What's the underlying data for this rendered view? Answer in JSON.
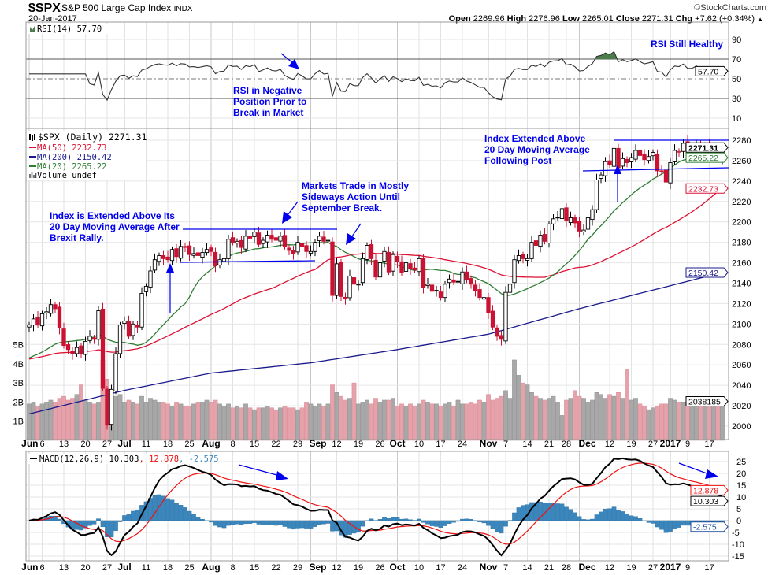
{
  "header": {
    "symbol": "$SPX",
    "name": "S&P 500 Large Cap Index",
    "exchange": "INDX",
    "date": "20-Jan-2017",
    "watermark": "©StockCharts.com",
    "open_label": "Open",
    "open": "2269.96",
    "high_label": "High",
    "high": "2276.96",
    "low_label": "Low",
    "low": "2265.01",
    "close_label": "Close",
    "close": "2271.31",
    "chg_label": "Chg",
    "chg": "+7.62 (+0.34%)",
    "chg_arrow": "▲"
  },
  "legends": {
    "rsi": "RSI(14) 57.70",
    "price": "$SPX (Daily) 2271.31",
    "ma50": "MA(50) 2232.73",
    "ma200": "MA(200) 2150.42",
    "ma20": "MA(20) 2265.22",
    "volume": "Volume undef",
    "macd": "MACD(12,26,9) 10.303",
    "macd_signal": ", 12.878",
    "macd_hist": ", -2.575"
  },
  "tags": {
    "rsi": "57.70",
    "close": "2271.31",
    "ma20": "2265.22",
    "ma50": "2232.73",
    "ma200": "2150.42",
    "volume": "2038185",
    "macd": "10.303",
    "signal": "12.878",
    "hist": "-2.575"
  },
  "annotations": {
    "rsi_healthy": "RSI Still Healthy",
    "rsi_negative": [
      "RSI in Negative",
      "Position Prior to",
      "Break in Market"
    ],
    "extended_dec": [
      "Index Extended Above",
      "20 Day Moving Average",
      "Following Post"
    ],
    "sideways": [
      "Markets Trade in Mostly",
      "Sideways Action Until",
      "September Break."
    ],
    "brexit": [
      "Index is Extended Above Its",
      "20 Day Moving Average After",
      "Brexit Rally."
    ]
  },
  "colors": {
    "ma50": "#dd1133",
    "ma200": "#1a1a8c",
    "ma20": "#2e7d32",
    "up_candle": "#000000",
    "down_candle": "#cc1133",
    "vol_up": "#a8a8a8",
    "vol_down": "#e6a2ab",
    "macd": "#000000",
    "signal": "#ee1111",
    "hist": "#3b86bd",
    "annotation": "#0000ee",
    "rsi_fill": "#4b7d4b"
  },
  "chart_data": {
    "type": "candlestick",
    "title": "$SPX S&P 500 Large Cap Index (Daily)",
    "range": [
      "2016-06-01",
      "2017-01-20"
    ],
    "closes": [
      2099,
      2105,
      2099,
      2110,
      2112,
      2119,
      2115,
      2096,
      2079,
      2075,
      2071,
      2077,
      2071,
      2083,
      2088,
      2085,
      2113,
      2037,
      2001,
      2036,
      2071,
      2099,
      2103,
      2088,
      2100,
      2097,
      2130,
      2137,
      2152,
      2163,
      2167,
      2164,
      2163,
      2173,
      2166,
      2176,
      2175,
      2168,
      2169,
      2167,
      2170,
      2173,
      2171,
      2157,
      2163,
      2164,
      2183,
      2180,
      2181,
      2175,
      2186,
      2184,
      2190,
      2178,
      2182,
      2187,
      2183,
      2182,
      2186,
      2176,
      2172,
      2169,
      2180,
      2176,
      2171,
      2171,
      2180,
      2186,
      2181,
      2182,
      2128,
      2159,
      2127,
      2125,
      2147,
      2139,
      2139,
      2164,
      2177,
      2164,
      2146,
      2160,
      2171,
      2151,
      2168,
      2161,
      2150,
      2160,
      2154,
      2153,
      2164,
      2136,
      2139,
      2132,
      2133,
      2126,
      2139,
      2144,
      2141,
      2141,
      2151,
      2143,
      2139,
      2133,
      2126,
      2126,
      2111,
      2097,
      2088,
      2085,
      2131,
      2139,
      2163,
      2167,
      2164,
      2164,
      2180,
      2177,
      2187,
      2181,
      2198,
      2203,
      2204,
      2213,
      2201,
      2204,
      2199,
      2191,
      2192,
      2204,
      2212,
      2241,
      2246,
      2259,
      2256,
      2272,
      2253,
      2262,
      2258,
      2263,
      2270,
      2265,
      2261,
      2264,
      2268,
      2250,
      2249,
      2239,
      2258,
      2270,
      2269,
      2277,
      2269,
      2269,
      2276,
      2271,
      2275,
      2268,
      2272,
      2264,
      2271.31
    ],
    "volume_billions": [
      1.9,
      2.0,
      1.8,
      1.9,
      2.0,
      2.1,
      2.0,
      2.2,
      2.3,
      2.1,
      2.2,
      2.4,
      2.9,
      2.1,
      2.0,
      1.9,
      2.0,
      4.2,
      3.2,
      2.6,
      2.3,
      2.4,
      2.0,
      2.1,
      2.0,
      1.9,
      2.3,
      2.0,
      2.2,
      2.1,
      2.0,
      2.0,
      1.9,
      1.8,
      2.0,
      1.9,
      1.8,
      1.8,
      1.9,
      2.0,
      2.0,
      2.1,
      2.0,
      2.1,
      1.9,
      1.8,
      1.9,
      1.7,
      1.8,
      1.7,
      1.9,
      1.7,
      1.6,
      1.7,
      1.7,
      1.8,
      1.7,
      1.6,
      1.7,
      1.8,
      1.7,
      1.7,
      1.6,
      1.7,
      2.0,
      1.9,
      1.8,
      1.9,
      1.8,
      1.9,
      2.9,
      2.5,
      2.3,
      2.1,
      2.2,
      3.0,
      1.9,
      2.0,
      2.1,
      1.9,
      2.2,
      2.0,
      2.1,
      2.1,
      2.2,
      1.8,
      1.9,
      1.8,
      1.9,
      1.8,
      1.9,
      2.1,
      2.0,
      1.9,
      1.9,
      1.8,
      1.9,
      2.0,
      1.8,
      2.1,
      1.9,
      1.9,
      2.0,
      1.9,
      2.1,
      2.0,
      2.4,
      2.1,
      2.2,
      2.3,
      2.6,
      2.2,
      4.2,
      3.4,
      3.0,
      2.9,
      2.5,
      2.3,
      2.2,
      2.1,
      2.2,
      2.3,
      2.0,
      1.3,
      2.1,
      2.2,
      2.6,
      2.3,
      2.2,
      2.0,
      2.1,
      2.5,
      2.4,
      2.2,
      2.4,
      2.3,
      2.5,
      2.2,
      3.7,
      2.1,
      2.2,
      1.9,
      1.8,
      1.6,
      1.7,
      1.8,
      1.9,
      1.9,
      2.2,
      2.1,
      2.0,
      2.0,
      2.0,
      2.1,
      2.1,
      2.2,
      2.1,
      2.1,
      2.0,
      2.1,
      2.04
    ],
    "ma_prehistory_price": 2065,
    "ma200_knots": [
      [
        0,
        2012
      ],
      [
        22,
        2035
      ],
      [
        42,
        2052
      ],
      [
        65,
        2062
      ],
      [
        85,
        2075
      ],
      [
        106,
        2090
      ],
      [
        127,
        2115
      ],
      [
        160,
        2150.42
      ]
    ],
    "x_ticks": [
      {
        "l": "Jun",
        "i": 0,
        "b": true
      },
      {
        "l": "6",
        "i": 3
      },
      {
        "l": "13",
        "i": 8
      },
      {
        "l": "20",
        "i": 13
      },
      {
        "l": "27",
        "i": 18
      },
      {
        "l": "Jul",
        "i": 22,
        "b": true
      },
      {
        "l": "11",
        "i": 27
      },
      {
        "l": "18",
        "i": 32
      },
      {
        "l": "25",
        "i": 37
      },
      {
        "l": "Aug",
        "i": 42,
        "b": true
      },
      {
        "l": "8",
        "i": 47
      },
      {
        "l": "15",
        "i": 52
      },
      {
        "l": "22",
        "i": 57
      },
      {
        "l": "29",
        "i": 62
      },
      {
        "l": "Sep",
        "i": 65,
        "b": true
      },
      {
        "l": "12",
        "i": 71
      },
      {
        "l": "19",
        "i": 76
      },
      {
        "l": "26",
        "i": 81
      },
      {
        "l": "Oct",
        "i": 85,
        "b": true
      },
      {
        "l": "10",
        "i": 90
      },
      {
        "l": "17",
        "i": 95
      },
      {
        "l": "24",
        "i": 100
      },
      {
        "l": "Nov",
        "i": 106,
        "b": true
      },
      {
        "l": "7",
        "i": 110
      },
      {
        "l": "14",
        "i": 115
      },
      {
        "l": "21",
        "i": 120
      },
      {
        "l": "28",
        "i": 124
      },
      {
        "l": "Dec",
        "i": 127,
        "b": true
      },
      {
        "l": "12",
        "i": 134
      },
      {
        "l": "19",
        "i": 139
      },
      {
        "l": "27",
        "i": 144
      },
      {
        "l": "2017",
        "i": 148,
        "b": true
      },
      {
        "l": "9",
        "i": 152
      },
      {
        "l": "17",
        "i": 157
      }
    ],
    "rsi_ticks": [
      90,
      70,
      50,
      30,
      10
    ],
    "price_ticks": [
      2280,
      2260,
      2240,
      2220,
      2200,
      2180,
      2160,
      2140,
      2120,
      2100,
      2080,
      2060,
      2040,
      2020,
      2000
    ],
    "volume_ticks": [
      {
        "v": 1,
        "l": "1B"
      },
      {
        "v": 2,
        "l": "2B"
      },
      {
        "v": 3,
        "l": "3B"
      },
      {
        "v": 4,
        "l": "4B"
      },
      {
        "v": 5,
        "l": "5B"
      }
    ],
    "macd_ticks": [
      25,
      20,
      15,
      10,
      5,
      0,
      -5,
      -10,
      -15
    ],
    "ylim_price": [
      2000,
      2280
    ],
    "ylim_rsi": [
      0,
      100
    ],
    "ylim_macd": [
      -15,
      25
    ]
  }
}
